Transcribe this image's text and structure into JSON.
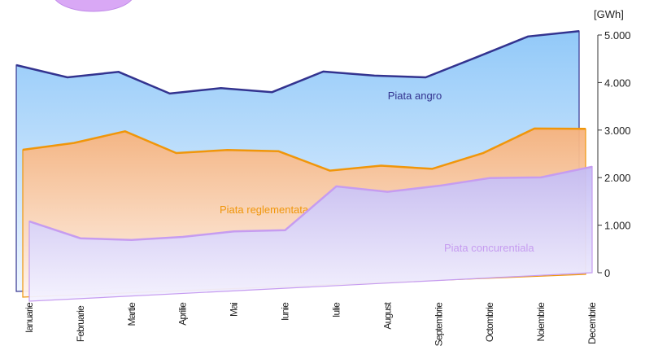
{
  "chart_data": {
    "type": "area",
    "y_label": "[GWh]",
    "categories": [
      "Ianuarie",
      "Februarie",
      "Martie",
      "Aprilie",
      "Mai",
      "Iunie",
      "Iulie",
      "August",
      "Septembrie",
      "Octombrie",
      "Noiembrie",
      "Decembrie"
    ],
    "series": [
      {
        "name": "Piata angro",
        "color": "#33338f",
        "fill": "#8cc6f8",
        "values": [
          4760,
          4470,
          4550,
          4060,
          4140,
          4020,
          4420,
          4300,
          4230,
          4620,
          5020,
          5100
        ]
      },
      {
        "name": "Piata reglementata",
        "color": "#f0960a",
        "fill": "#f7b27c",
        "values": [
          3100,
          3200,
          3400,
          2900,
          2920,
          2850,
          2400,
          2460,
          2350,
          2640,
          3110,
          3060
        ]
      },
      {
        "name": "Piata concurentiala",
        "color": "#c69cf0",
        "fill": "#c4bcf4",
        "values": [
          1680,
          1270,
          1180,
          1190,
          1250,
          1220,
          2090,
          1920,
          1990,
          2100,
          2060,
          2230
        ]
      }
    ],
    "ylim": [
      0,
      5000
    ],
    "yticks": [
      {
        "value": 0,
        "label": "0"
      },
      {
        "value": 1000,
        "label": "1.000"
      },
      {
        "value": 2000,
        "label": "2.000"
      },
      {
        "value": 3000,
        "label": "3.000"
      },
      {
        "value": 4000,
        "label": "4.000"
      },
      {
        "value": 5000,
        "label": "5.000"
      }
    ]
  }
}
